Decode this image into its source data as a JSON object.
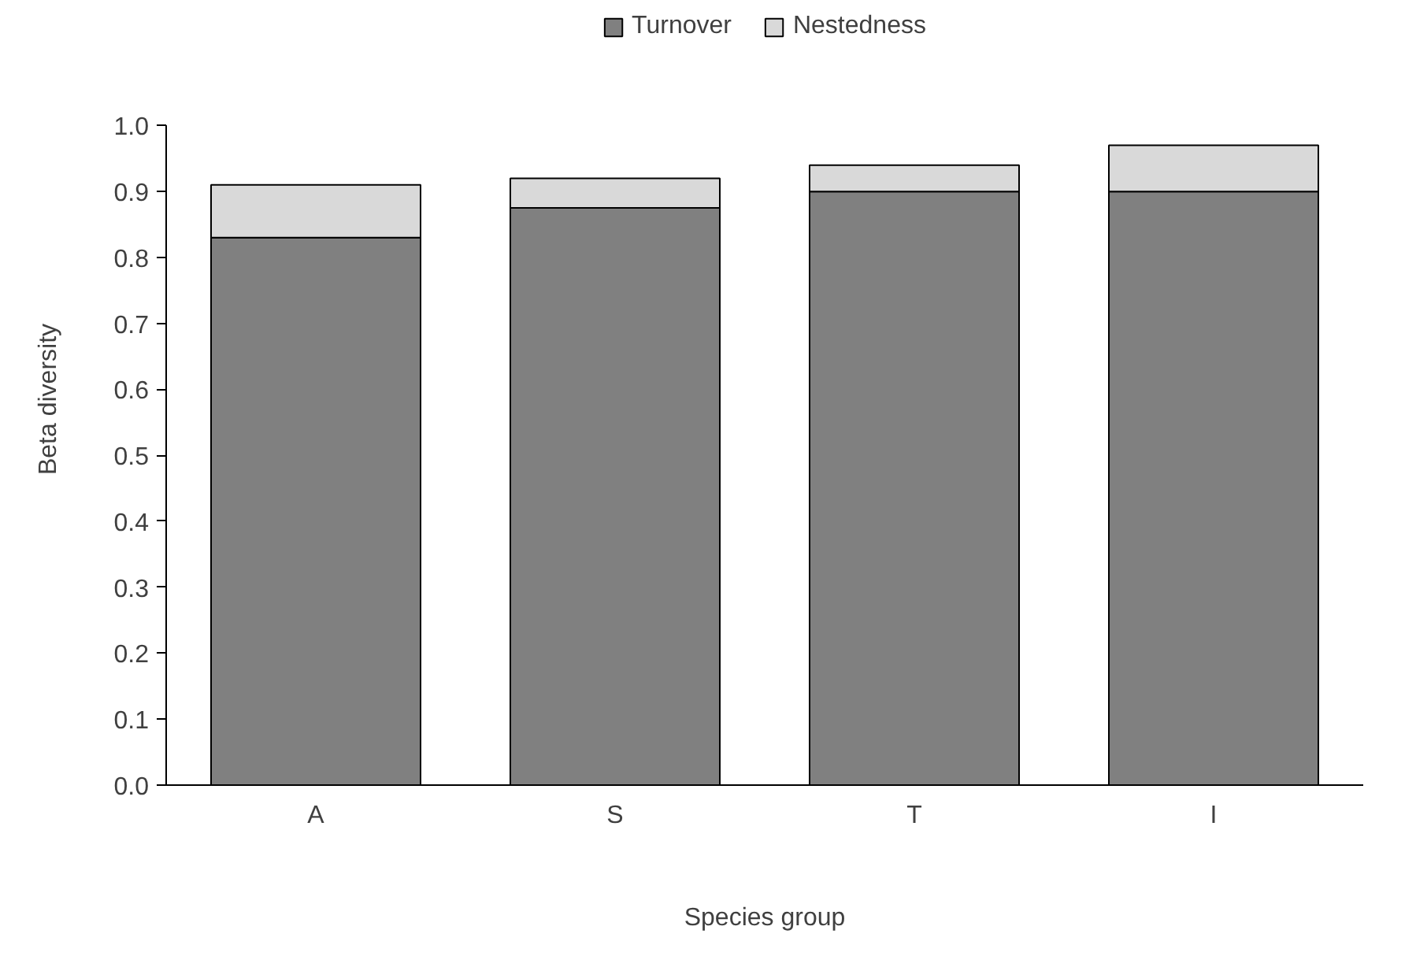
{
  "chart_data": {
    "type": "bar",
    "stacked": true,
    "xlabel": "Species group",
    "ylabel": "Beta diversity",
    "categories": [
      "A",
      "S",
      "T",
      "I"
    ],
    "series": [
      {
        "name": "Turnover",
        "color": "#808080",
        "values": [
          0.83,
          0.875,
          0.9,
          0.9
        ]
      },
      {
        "name": "Nestedness",
        "color": "#d9d9d9",
        "values": [
          0.08,
          0.045,
          0.04,
          0.07
        ]
      }
    ],
    "ylim": [
      0,
      1.0
    ],
    "yticks": [
      {
        "value": 0,
        "label": "0.0"
      },
      0.1,
      0.2,
      0.3,
      0.4,
      0.5,
      0.6,
      0.7,
      0.8,
      0.9,
      {
        "value": 1.0,
        "label": "1.0"
      }
    ],
    "grid": false,
    "legend": "top"
  }
}
